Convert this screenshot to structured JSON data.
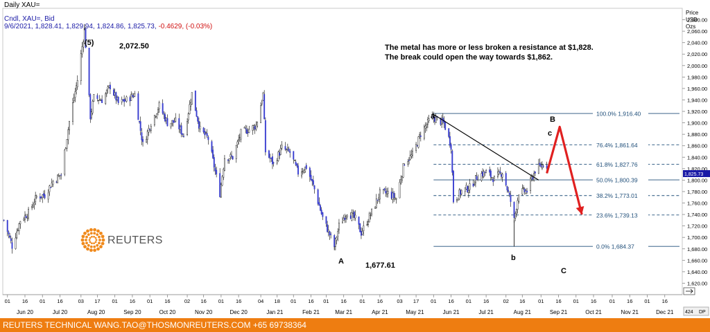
{
  "header": {
    "title": "Daily XAU=",
    "line1": "Cndl, XAU=, Bid",
    "ohlc_date": "9/6/2021,",
    "ohlc_values": "1,828.41, 1,829.94, 1,824.86, 1,825.73,",
    "ohlc_change": "-0.4629, (-0.03%)"
  },
  "axis_title": [
    "Price",
    "USD",
    "Ozs"
  ],
  "commentary": [
    "The metal has more or less broken a resistance at $1,828.",
    "The break could open the way towards $1,862."
  ],
  "wave_labels": {
    "peak": "(5)",
    "peak_value": "2,072.50",
    "A": "A",
    "A_value": "1,677.61",
    "a": "a",
    "b": "b",
    "B": "B",
    "c": "c",
    "C": "C"
  },
  "logo": {
    "text": "REUTERS"
  },
  "footer": {
    "text": "REUTERS TECHNICAL  WANG.TAO@THOSMONREUTERS.COM  +65 69738364"
  },
  "current_price_marker": "1,825.73",
  "corner_labels": {
    "scroll": "424",
    "dp": "DP"
  },
  "colors": {
    "candle_up": "#ffffff",
    "candle_down": "#3a3fd1",
    "wick": "#000000",
    "fib_line": "#1f4e79",
    "trendline": "#000000",
    "arrow": "#e02020",
    "footer_bg": "#ee7d11",
    "header_text": "#1a1aa6",
    "change_text": "#d01010"
  },
  "chart_data": {
    "type": "candlestick",
    "title": "Daily XAU=",
    "y_axis": {
      "label": "Price USD Ozs",
      "range": [
        1600,
        2100
      ],
      "ticks": [
        1620,
        1640,
        1660,
        1680,
        1700,
        1720,
        1740,
        1760,
        1780,
        1800,
        1820,
        1840,
        1860,
        1880,
        1900,
        1920,
        1940,
        1960,
        1980,
        2000,
        2020,
        2040,
        2060,
        2080
      ],
      "tick_labels": [
        "1,620.00",
        "1,640.00",
        "1,660.00",
        "1,680.00",
        "1,700.00",
        "1,720.00",
        "1,740.00",
        "1,760.00",
        "1,780.00",
        "1,800.00",
        "1,820.00",
        "1,840.00",
        "1,860.00",
        "1,880.00",
        "1,900.00",
        "1,920.00",
        "1,940.00",
        "1,960.00",
        "1,980.00",
        "2,000.00",
        "2,020.00",
        "2,040.00",
        "2,060.00",
        "2,080.00"
      ]
    },
    "x_axis": {
      "range": [
        "2020-05-28",
        "2021-12-31"
      ],
      "day_ticks": [
        {
          "date": "2020-06-01",
          "label": "01"
        },
        {
          "date": "2020-06-16",
          "label": "16"
        },
        {
          "date": "2020-07-01",
          "label": "01"
        },
        {
          "date": "2020-07-16",
          "label": "16"
        },
        {
          "date": "2020-08-03",
          "label": "03"
        },
        {
          "date": "2020-08-17",
          "label": "17"
        },
        {
          "date": "2020-09-01",
          "label": "01"
        },
        {
          "date": "2020-09-16",
          "label": "16"
        },
        {
          "date": "2020-10-01",
          "label": "01"
        },
        {
          "date": "2020-10-16",
          "label": "16"
        },
        {
          "date": "2020-11-02",
          "label": "02"
        },
        {
          "date": "2020-11-16",
          "label": "16"
        },
        {
          "date": "2020-12-01",
          "label": "01"
        },
        {
          "date": "2020-12-16",
          "label": "16"
        },
        {
          "date": "2021-01-04",
          "label": "04"
        },
        {
          "date": "2021-01-18",
          "label": "18"
        },
        {
          "date": "2021-02-01",
          "label": "01"
        },
        {
          "date": "2021-02-16",
          "label": "16"
        },
        {
          "date": "2021-03-01",
          "label": "01"
        },
        {
          "date": "2021-03-16",
          "label": "16"
        },
        {
          "date": "2021-04-01",
          "label": "01"
        },
        {
          "date": "2021-04-16",
          "label": "16"
        },
        {
          "date": "2021-05-03",
          "label": "03"
        },
        {
          "date": "2021-05-17",
          "label": "17"
        },
        {
          "date": "2021-06-01",
          "label": "01"
        },
        {
          "date": "2021-06-16",
          "label": "16"
        },
        {
          "date": "2021-07-01",
          "label": "01"
        },
        {
          "date": "2021-07-16",
          "label": "16"
        },
        {
          "date": "2021-08-02",
          "label": "02"
        },
        {
          "date": "2021-08-16",
          "label": "16"
        },
        {
          "date": "2021-09-01",
          "label": "01"
        },
        {
          "date": "2021-09-16",
          "label": "16"
        },
        {
          "date": "2021-10-01",
          "label": "01"
        },
        {
          "date": "2021-10-16",
          "label": "16"
        },
        {
          "date": "2021-11-01",
          "label": "01"
        },
        {
          "date": "2021-11-16",
          "label": "16"
        },
        {
          "date": "2021-12-01",
          "label": "01"
        },
        {
          "date": "2021-12-16",
          "label": "16"
        }
      ],
      "month_labels": [
        {
          "date": "2020-06-16",
          "label": "Jun 20"
        },
        {
          "date": "2020-07-16",
          "label": "Jul 20"
        },
        {
          "date": "2020-08-16",
          "label": "Aug 20"
        },
        {
          "date": "2020-09-16",
          "label": "Sep 20"
        },
        {
          "date": "2020-10-16",
          "label": "Oct 20"
        },
        {
          "date": "2020-11-16",
          "label": "Nov 20"
        },
        {
          "date": "2020-12-16",
          "label": "Dec 20"
        },
        {
          "date": "2021-01-16",
          "label": "Jan 21"
        },
        {
          "date": "2021-02-16",
          "label": "Feb 21"
        },
        {
          "date": "2021-03-16",
          "label": "Mar 21"
        },
        {
          "date": "2021-04-16",
          "label": "Apr 21"
        },
        {
          "date": "2021-05-16",
          "label": "May 21"
        },
        {
          "date": "2021-06-16",
          "label": "Jun 21"
        },
        {
          "date": "2021-07-16",
          "label": "Jul 21"
        },
        {
          "date": "2021-08-16",
          "label": "Aug 21"
        },
        {
          "date": "2021-09-16",
          "label": "Sep 21"
        },
        {
          "date": "2021-10-16",
          "label": "Oct 21"
        },
        {
          "date": "2021-11-16",
          "label": "Nov 21"
        },
        {
          "date": "2021-12-16",
          "label": "Dec 21"
        }
      ]
    },
    "closes": [
      [
        "2020-05-29",
        1730
      ],
      [
        "2020-06-05",
        1685
      ],
      [
        "2020-06-12",
        1730
      ],
      [
        "2020-06-19",
        1743
      ],
      [
        "2020-06-26",
        1771
      ],
      [
        "2020-07-03",
        1774
      ],
      [
        "2020-07-10",
        1798
      ],
      [
        "2020-07-17",
        1810
      ],
      [
        "2020-07-24",
        1902
      ],
      [
        "2020-07-31",
        1975
      ],
      [
        "2020-08-06",
        2062
      ],
      [
        "2020-08-07",
        2035
      ],
      [
        "2020-08-11",
        1911
      ],
      [
        "2020-08-14",
        1944
      ],
      [
        "2020-08-21",
        1940
      ],
      [
        "2020-08-28",
        1964
      ],
      [
        "2020-09-04",
        1934
      ],
      [
        "2020-09-11",
        1940
      ],
      [
        "2020-09-18",
        1950
      ],
      [
        "2020-09-25",
        1862
      ],
      [
        "2020-10-02",
        1900
      ],
      [
        "2020-10-09",
        1930
      ],
      [
        "2020-10-16",
        1900
      ],
      [
        "2020-10-23",
        1902
      ],
      [
        "2020-10-30",
        1878
      ],
      [
        "2020-11-06",
        1951
      ],
      [
        "2020-11-13",
        1888
      ],
      [
        "2020-11-20",
        1872
      ],
      [
        "2020-11-30",
        1777
      ],
      [
        "2020-12-04",
        1840
      ],
      [
        "2020-12-11",
        1840
      ],
      [
        "2020-12-18",
        1882
      ],
      [
        "2020-12-31",
        1895
      ],
      [
        "2021-01-06",
        1950
      ],
      [
        "2021-01-08",
        1850
      ],
      [
        "2021-01-15",
        1828
      ],
      [
        "2021-01-22",
        1856
      ],
      [
        "2021-01-29",
        1848
      ],
      [
        "2021-02-05",
        1813
      ],
      [
        "2021-02-12",
        1823
      ],
      [
        "2021-02-19",
        1784
      ],
      [
        "2021-02-26",
        1734
      ],
      [
        "2021-03-05",
        1700
      ],
      [
        "2021-03-08",
        1684
      ],
      [
        "2021-03-12",
        1720
      ],
      [
        "2021-03-19",
        1745
      ],
      [
        "2021-03-26",
        1732
      ],
      [
        "2021-03-31",
        1708
      ],
      [
        "2021-04-09",
        1744
      ],
      [
        "2021-04-16",
        1777
      ],
      [
        "2021-04-23",
        1777
      ],
      [
        "2021-04-30",
        1768
      ],
      [
        "2021-05-07",
        1831
      ],
      [
        "2021-05-14",
        1844
      ],
      [
        "2021-05-21",
        1881
      ],
      [
        "2021-05-28",
        1903
      ],
      [
        "2021-06-01",
        1909
      ],
      [
        "2021-06-10",
        1899
      ],
      [
        "2021-06-16",
        1860
      ],
      [
        "2021-06-18",
        1764
      ],
      [
        "2021-06-25",
        1781
      ],
      [
        "2021-07-02",
        1787
      ],
      [
        "2021-07-09",
        1808
      ],
      [
        "2021-07-16",
        1814
      ],
      [
        "2021-07-23",
        1802
      ],
      [
        "2021-07-30",
        1814
      ],
      [
        "2021-08-06",
        1763
      ],
      [
        "2021-08-09",
        1730
      ],
      [
        "2021-08-13",
        1779
      ],
      [
        "2021-08-20",
        1781
      ],
      [
        "2021-08-27",
        1817
      ],
      [
        "2021-09-03",
        1828
      ],
      [
        "2021-09-06",
        1825.73
      ]
    ],
    "last_bar": {
      "date": "2021-09-06",
      "open": 1828.41,
      "high": 1829.94,
      "low": 1824.86,
      "close": 1825.73,
      "change": -0.4629,
      "change_pct": -0.03
    },
    "fibonacci_levels": [
      {
        "ratio": "100.0%",
        "value": 1916.4,
        "label": "1,916.40"
      },
      {
        "ratio": "76.4%",
        "value": 1861.64,
        "label": "1,861.64"
      },
      {
        "ratio": "61.8%",
        "value": 1827.76,
        "label": "1,827.76"
      },
      {
        "ratio": "50.0%",
        "value": 1800.39,
        "label": "1,800.39"
      },
      {
        "ratio": "38.2%",
        "value": 1773.01,
        "label": "1,773.01"
      },
      {
        "ratio": "23.6%",
        "value": 1739.13,
        "label": "1,739.13"
      },
      {
        "ratio": "0.0%",
        "value": 1684.37,
        "label": "1,684.37"
      }
    ],
    "trendline": [
      [
        "2021-05-31",
        1916
      ],
      [
        "2021-08-30",
        1800
      ]
    ],
    "projection": [
      [
        "2021-09-06",
        1812
      ],
      [
        "2021-09-17",
        1893
      ],
      [
        "2021-10-06",
        1740
      ]
    ],
    "wave_points": [
      {
        "label": "(5)",
        "date": "2020-08-06",
        "value": 2072.5
      },
      {
        "label": "A",
        "date": "2021-03-08",
        "value": 1677.61
      },
      {
        "label": "a",
        "date": "2021-06-01",
        "value": 1916
      },
      {
        "label": "b",
        "date": "2021-08-09",
        "value": 1684
      }
    ]
  }
}
